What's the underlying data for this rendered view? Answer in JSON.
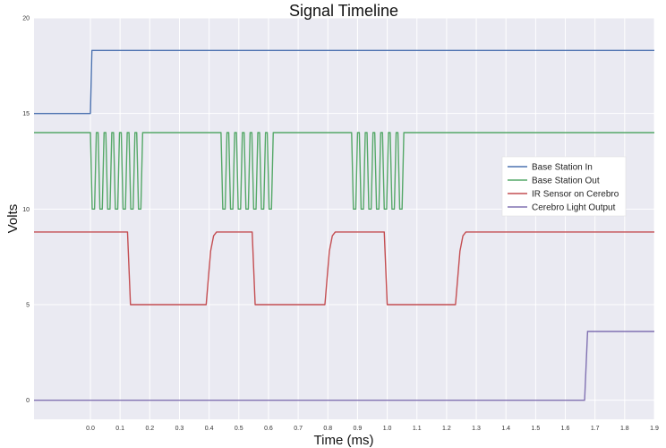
{
  "chart_data": {
    "type": "line",
    "title": "Signal Timeline",
    "xlabel": "Time (ms)",
    "ylabel": "Volts",
    "xlim": [
      -0.19,
      1.9
    ],
    "ylim": [
      -1,
      20
    ],
    "xticks": [
      0.0,
      0.1,
      0.2,
      0.3,
      0.4,
      0.5,
      0.6,
      0.7,
      0.8,
      0.9,
      1.0,
      1.1,
      1.2,
      1.3,
      1.4,
      1.5,
      1.6,
      1.7,
      1.8,
      1.9
    ],
    "xtick_labels": [
      "0.0",
      "0.1",
      "0.2",
      "0.3",
      "0.4",
      "0.5",
      "0.6",
      "0.7",
      "0.8",
      "0.9",
      "1.0",
      "1.1",
      "1.2",
      "1.3",
      "1.4",
      "1.5",
      "1.6",
      "1.7",
      "1.8",
      "1.9"
    ],
    "yticks": [
      0,
      5,
      10,
      15,
      20
    ],
    "ytick_labels": [
      "0",
      "5",
      "10",
      "15",
      "20"
    ],
    "grid": true,
    "legend_position": "right",
    "background": "#eaeaf2",
    "series": [
      {
        "name": "Base Station In",
        "color": "#4c72b0",
        "points": [
          [
            -0.19,
            15.0
          ],
          [
            0.0,
            15.0
          ],
          [
            0.005,
            18.3
          ],
          [
            1.9,
            18.3
          ]
        ]
      },
      {
        "name": "Base Station Out",
        "color": "#55a868",
        "points": [
          [
            -0.19,
            14.0
          ],
          [
            0.0,
            14.0
          ],
          [
            0.006,
            10.0
          ],
          [
            0.014,
            10.0
          ],
          [
            0.02,
            14.0
          ],
          [
            0.026,
            14.0
          ],
          [
            0.032,
            10.0
          ],
          [
            0.04,
            10.0
          ],
          [
            0.046,
            14.0
          ],
          [
            0.052,
            14.0
          ],
          [
            0.058,
            10.0
          ],
          [
            0.066,
            10.0
          ],
          [
            0.072,
            14.0
          ],
          [
            0.078,
            14.0
          ],
          [
            0.084,
            10.0
          ],
          [
            0.092,
            10.0
          ],
          [
            0.098,
            14.0
          ],
          [
            0.104,
            14.0
          ],
          [
            0.11,
            10.0
          ],
          [
            0.118,
            10.0
          ],
          [
            0.124,
            14.0
          ],
          [
            0.13,
            14.0
          ],
          [
            0.136,
            10.0
          ],
          [
            0.144,
            10.0
          ],
          [
            0.15,
            14.0
          ],
          [
            0.156,
            14.0
          ],
          [
            0.162,
            10.0
          ],
          [
            0.17,
            10.0
          ],
          [
            0.176,
            14.0
          ],
          [
            0.44,
            14.0
          ],
          [
            0.446,
            10.0
          ],
          [
            0.454,
            10.0
          ],
          [
            0.46,
            14.0
          ],
          [
            0.466,
            14.0
          ],
          [
            0.472,
            10.0
          ],
          [
            0.48,
            10.0
          ],
          [
            0.486,
            14.0
          ],
          [
            0.492,
            14.0
          ],
          [
            0.498,
            10.0
          ],
          [
            0.506,
            10.0
          ],
          [
            0.512,
            14.0
          ],
          [
            0.518,
            14.0
          ],
          [
            0.524,
            10.0
          ],
          [
            0.532,
            10.0
          ],
          [
            0.538,
            14.0
          ],
          [
            0.544,
            14.0
          ],
          [
            0.55,
            10.0
          ],
          [
            0.558,
            10.0
          ],
          [
            0.564,
            14.0
          ],
          [
            0.57,
            14.0
          ],
          [
            0.576,
            10.0
          ],
          [
            0.584,
            10.0
          ],
          [
            0.59,
            14.0
          ],
          [
            0.596,
            14.0
          ],
          [
            0.602,
            10.0
          ],
          [
            0.61,
            10.0
          ],
          [
            0.616,
            14.0
          ],
          [
            0.88,
            14.0
          ],
          [
            0.886,
            10.0
          ],
          [
            0.894,
            10.0
          ],
          [
            0.9,
            14.0
          ],
          [
            0.906,
            14.0
          ],
          [
            0.912,
            10.0
          ],
          [
            0.92,
            10.0
          ],
          [
            0.926,
            14.0
          ],
          [
            0.932,
            14.0
          ],
          [
            0.938,
            10.0
          ],
          [
            0.946,
            10.0
          ],
          [
            0.952,
            14.0
          ],
          [
            0.958,
            14.0
          ],
          [
            0.964,
            10.0
          ],
          [
            0.972,
            10.0
          ],
          [
            0.978,
            14.0
          ],
          [
            0.984,
            14.0
          ],
          [
            0.99,
            10.0
          ],
          [
            0.998,
            10.0
          ],
          [
            1.004,
            14.0
          ],
          [
            1.01,
            14.0
          ],
          [
            1.016,
            10.0
          ],
          [
            1.024,
            10.0
          ],
          [
            1.03,
            14.0
          ],
          [
            1.036,
            14.0
          ],
          [
            1.042,
            10.0
          ],
          [
            1.05,
            10.0
          ],
          [
            1.056,
            14.0
          ],
          [
            1.9,
            14.0
          ]
        ]
      },
      {
        "name": "IR Sensor on Cerebro",
        "color": "#c44e52",
        "points": [
          [
            -0.19,
            8.8
          ],
          [
            0.125,
            8.8
          ],
          [
            0.135,
            5.0
          ],
          [
            0.39,
            5.0
          ],
          [
            0.405,
            7.8
          ],
          [
            0.415,
            8.6
          ],
          [
            0.425,
            8.8
          ],
          [
            0.545,
            8.8
          ],
          [
            0.555,
            5.0
          ],
          [
            0.79,
            5.0
          ],
          [
            0.805,
            7.8
          ],
          [
            0.815,
            8.6
          ],
          [
            0.825,
            8.8
          ],
          [
            0.99,
            8.8
          ],
          [
            1.0,
            5.0
          ],
          [
            1.23,
            5.0
          ],
          [
            1.245,
            7.8
          ],
          [
            1.255,
            8.6
          ],
          [
            1.265,
            8.8
          ],
          [
            1.9,
            8.8
          ]
        ]
      },
      {
        "name": "Cerebro Light Output",
        "color": "#8172b2",
        "points": [
          [
            -0.19,
            0.0
          ],
          [
            1.665,
            0.0
          ],
          [
            1.675,
            3.6
          ],
          [
            1.9,
            3.6
          ]
        ]
      }
    ]
  }
}
